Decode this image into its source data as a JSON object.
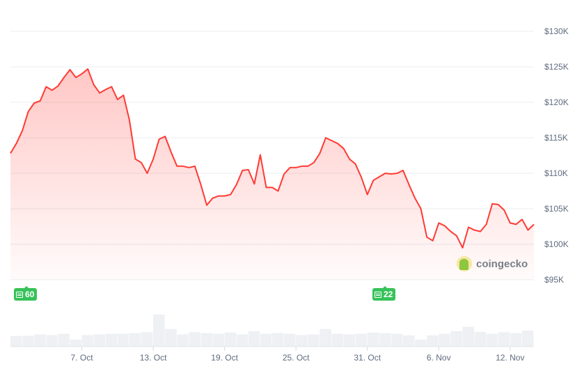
{
  "chart_data": {
    "type": "line",
    "title": "",
    "xlabel": "",
    "ylabel": "",
    "y_unit": "USD",
    "ylim": [
      95000,
      130000
    ],
    "y_ticks": [
      "$95K",
      "$100K",
      "$105K",
      "$110K",
      "$115K",
      "$120K",
      "$125K",
      "$130K"
    ],
    "y_tick_values": [
      95000,
      100000,
      105000,
      110000,
      115000,
      120000,
      125000,
      130000
    ],
    "x_range": [
      "2025-10-01",
      "2025-11-14"
    ],
    "x_ticks": [
      "7. Oct",
      "13. Oct",
      "19. Oct",
      "25. Oct",
      "31. Oct",
      "6. Nov",
      "12. Nov"
    ],
    "x_tick_dates": [
      "2025-10-07",
      "2025-10-13",
      "2025-10-19",
      "2025-10-25",
      "2025-10-31",
      "2025-11-06",
      "2025-11-12"
    ],
    "grid": true,
    "line_color": "#ff3a33",
    "series": [
      {
        "interval": "12h",
        "start": "2025-10-01",
        "values": [
          112800,
          114200,
          116000,
          118700,
          119900,
          120200,
          122200,
          121700,
          122300,
          123500,
          124600,
          123500,
          124000,
          124700,
          122500,
          121300,
          121800,
          122200,
          120400,
          121000,
          117500,
          112000,
          111500,
          110000,
          112000,
          114800,
          115200,
          113000,
          111000,
          111000,
          110800,
          111000,
          108400,
          105500,
          106500,
          106800,
          106800,
          107000,
          108400,
          110400,
          110500,
          108500,
          112600,
          108000,
          108000,
          107500,
          109900,
          110800,
          110800,
          111000,
          111000,
          111500,
          112800,
          115000,
          114600,
          114200,
          113500,
          112000,
          111300,
          109400,
          107000,
          109000,
          109500,
          110000,
          109900,
          110000,
          110400,
          108400,
          106500,
          105000,
          101000,
          100500,
          103000,
          102600,
          101800,
          101200,
          99500,
          102400,
          102000,
          101800,
          102800,
          105700,
          105600,
          104800,
          103000,
          102800,
          103500,
          102000,
          102800
        ]
      }
    ],
    "volume": {
      "interval": "1d",
      "relative_values": [
        0.33,
        0.34,
        0.38,
        0.36,
        0.4,
        0.22,
        0.36,
        0.38,
        0.4,
        0.4,
        0.42,
        0.45,
        1.0,
        0.55,
        0.38,
        0.45,
        0.42,
        0.4,
        0.44,
        0.38,
        0.48,
        0.4,
        0.42,
        0.4,
        0.36,
        0.38,
        0.55,
        0.4,
        0.38,
        0.4,
        0.44,
        0.42,
        0.4,
        0.35,
        0.22,
        0.35,
        0.4,
        0.48,
        0.62,
        0.46,
        0.4,
        0.45,
        0.42,
        0.5,
        0.5
      ]
    },
    "volume_color": "#eef0f3"
  },
  "badges": [
    {
      "icon": "news-icon",
      "count": "60"
    },
    {
      "icon": "news-icon",
      "count": "22"
    }
  ],
  "logo": {
    "text": "coingecko"
  }
}
